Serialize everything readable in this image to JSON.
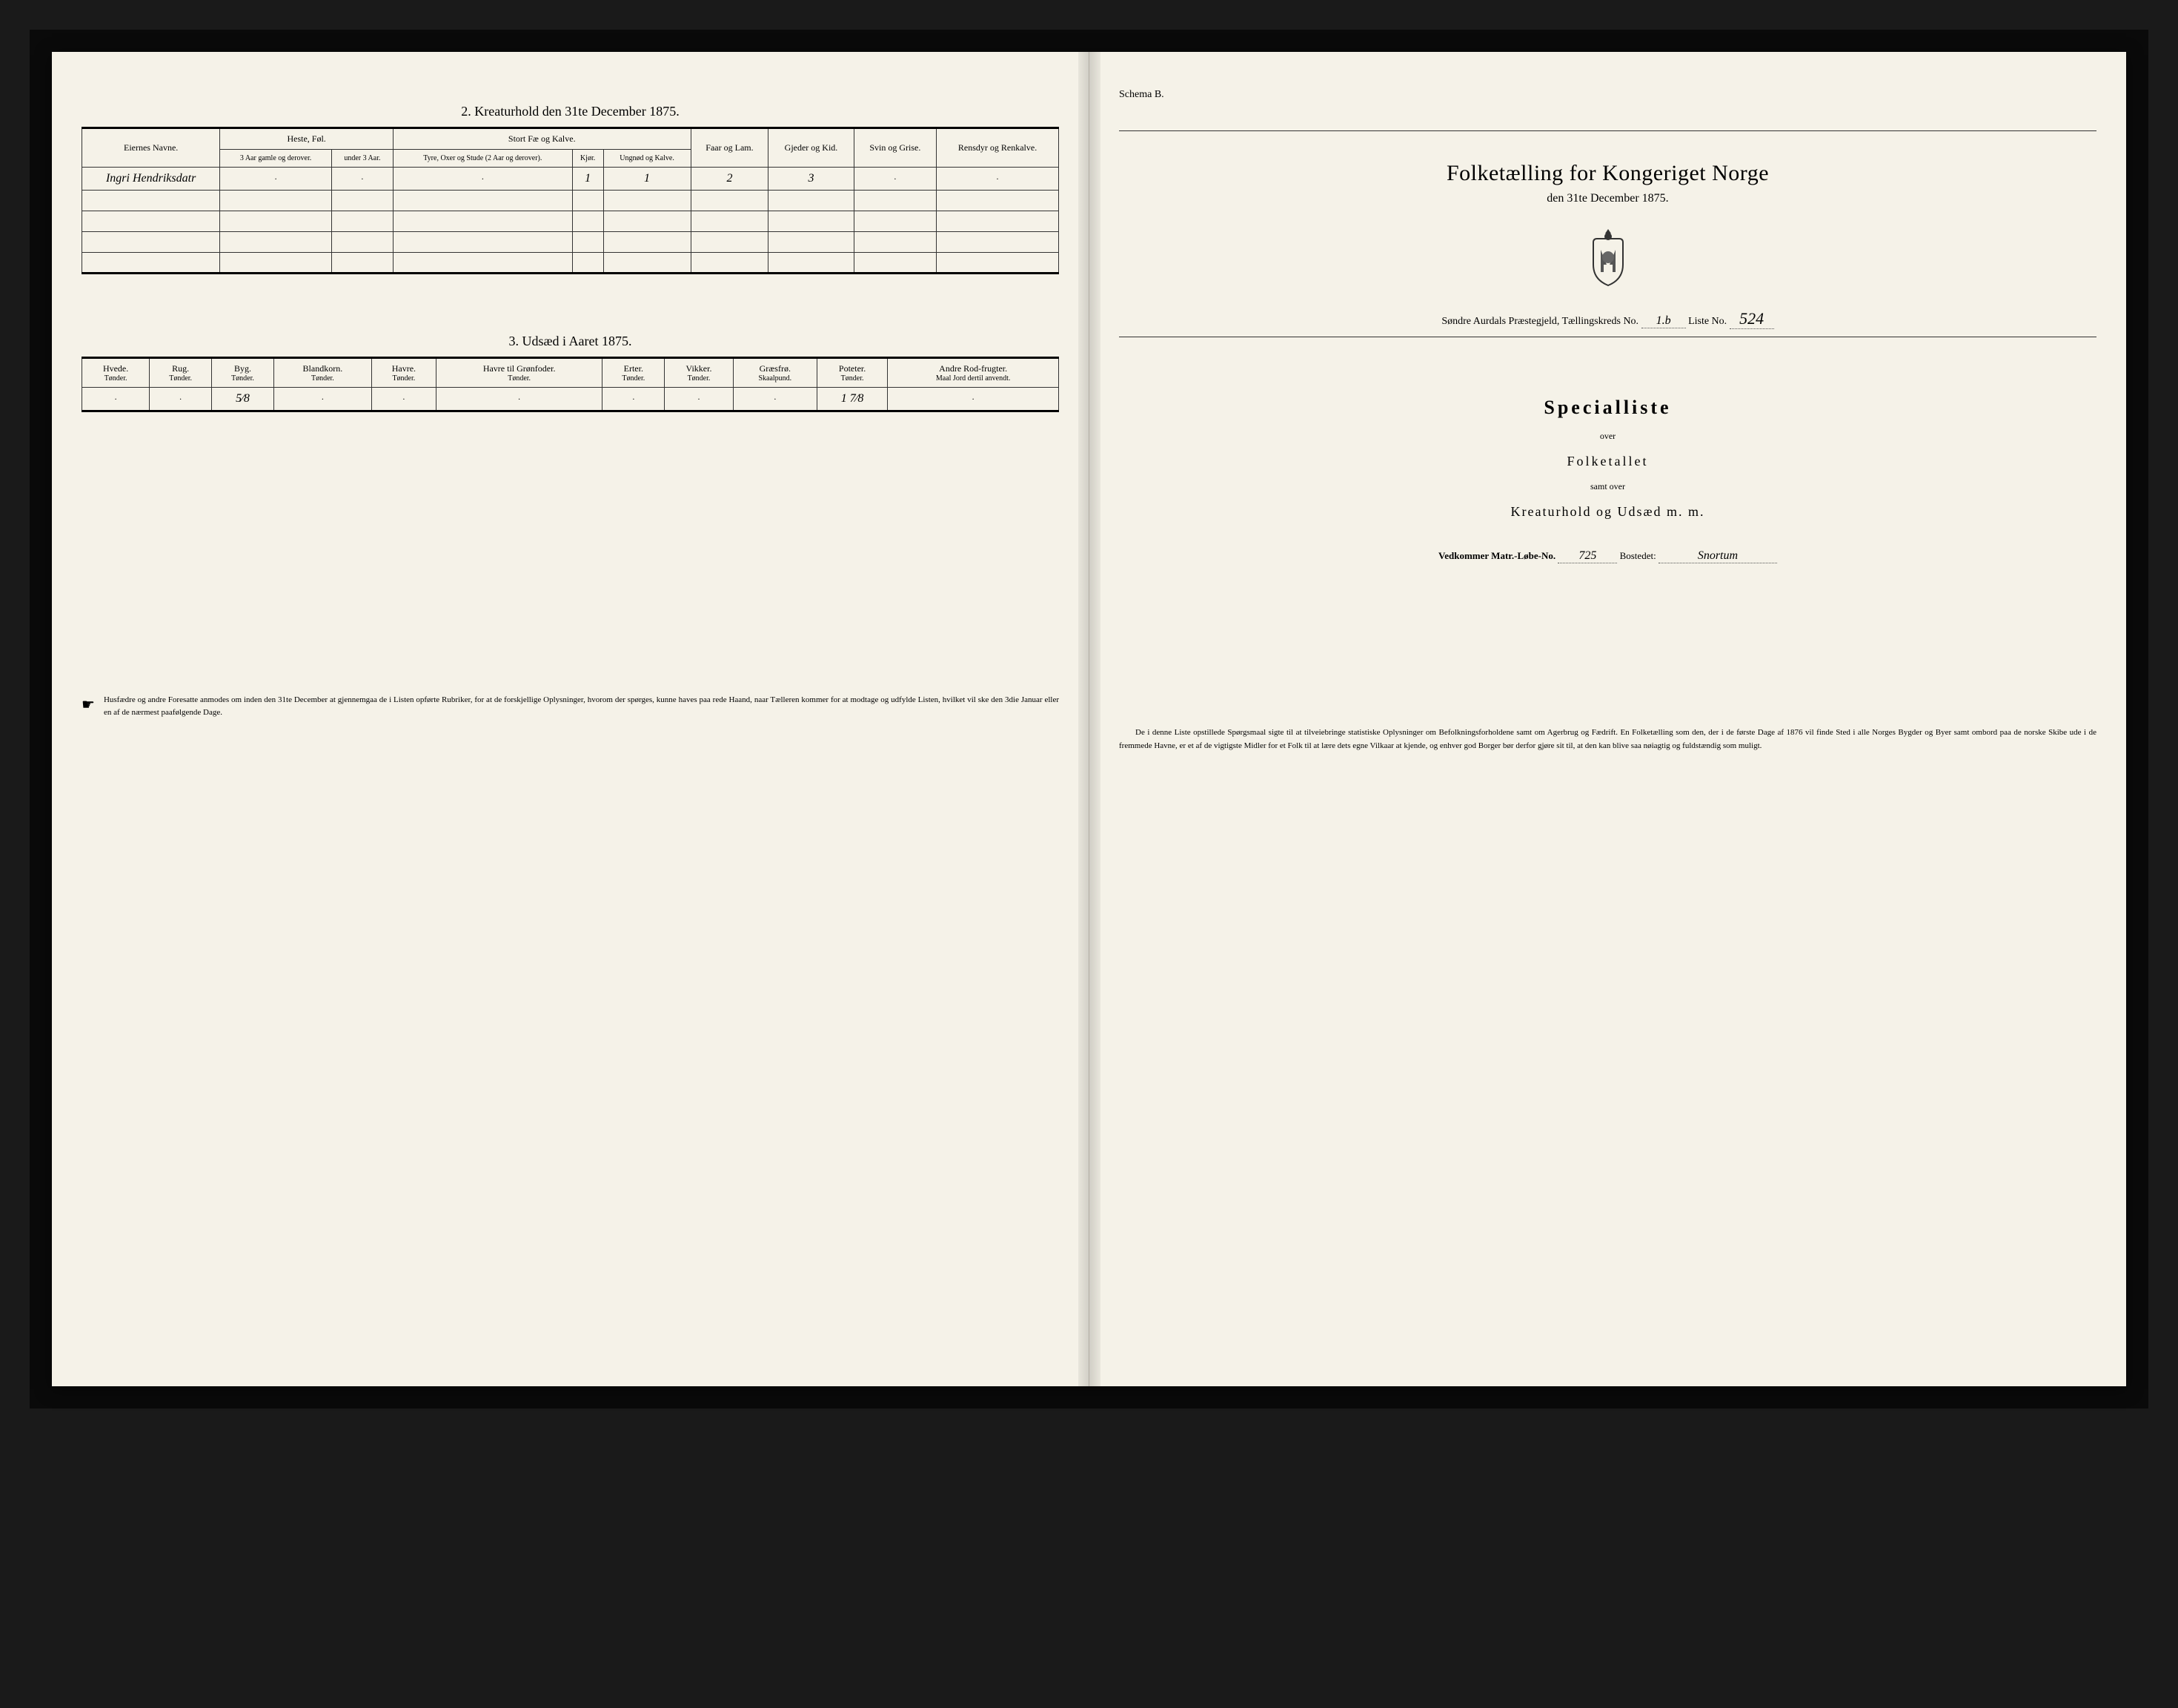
{
  "left": {
    "section2_title": "2. Kreaturhold den 31te December 1875.",
    "table2": {
      "col_owner": "Eiernes Navne.",
      "group_heste": "Heste, Føl.",
      "group_stort": "Stort Fæ og Kalve.",
      "col_heste1": "3 Aar gamle og derover.",
      "col_heste2": "under 3 Aar.",
      "col_stort1": "Tyre, Oxer og Stude (2 Aar og derover).",
      "col_stort2": "Kjør.",
      "col_stort3": "Ungnød og Kalve.",
      "col_faar": "Faar og Lam.",
      "col_gjeder": "Gjeder og Kid.",
      "col_svin": "Svin og Grise.",
      "col_rensdyr": "Rensdyr og Renkalve.",
      "row1": {
        "owner": "Ingri Hendriksdatr",
        "h1": "·",
        "h2": "·",
        "s1": "·",
        "s2": "1",
        "s3": "1",
        "faar": "2",
        "gjeder": "3",
        "svin": "·",
        "ren": "·"
      }
    },
    "section3_title": "3. Udsæd i Aaret 1875.",
    "table3": {
      "cols": [
        {
          "h": "Hvede.",
          "s": "Tønder."
        },
        {
          "h": "Rug.",
          "s": "Tønder."
        },
        {
          "h": "Byg.",
          "s": "Tønder."
        },
        {
          "h": "Blandkorn.",
          "s": "Tønder."
        },
        {
          "h": "Havre.",
          "s": "Tønder."
        },
        {
          "h": "Havre til Grønfoder.",
          "s": "Tønder."
        },
        {
          "h": "Erter.",
          "s": "Tønder."
        },
        {
          "h": "Vikker.",
          "s": "Tønder."
        },
        {
          "h": "Græsfrø.",
          "s": "Skaalpund."
        },
        {
          "h": "Poteter.",
          "s": "Tønder."
        },
        {
          "h": "Andre Rod-frugter.",
          "s": "Maal Jord dertil anvendt."
        }
      ],
      "row": [
        "·",
        "·",
        "5⁄8",
        "·",
        "·",
        "·",
        "·",
        "·",
        "·",
        "1 7⁄8",
        "·"
      ]
    },
    "note": "Husfædre og andre Foresatte anmodes om inden den 31te December at gjennemgaa de i Listen opførte Rubriker, for at de forskjellige Oplysninger, hvorom der spørges, kunne haves paa rede Haand, naar Tælleren kommer for at modtage og udfylde Listen, hvilket vil ske den 3die Januar eller en af de nærmest paafølgende Dage."
  },
  "right": {
    "schema": "Schema B.",
    "main_title": "Folketælling for Kongeriget Norge",
    "sub_title": "den 31te December 1875.",
    "district_prefix": "Søndre Aurdals Præstegjeld, Tællingskreds No.",
    "district_no": "1.b",
    "liste_label": "Liste No.",
    "liste_no": "524",
    "special": "Specialliste",
    "over": "over",
    "folketallet": "Folketallet",
    "samt": "samt over",
    "kreatur": "Kreaturhold og Udsæd m. m.",
    "vedkommer_label": "Vedkommer Matr.-Løbe-No.",
    "matr_no": "725",
    "bosted_label": "Bostedet:",
    "bosted": "Snortum",
    "para": "De i denne Liste opstillede Spørgsmaal sigte til at tilveiebringe statistiske Oplysninger om Befolkningsforholdene samt om Agerbrug og Fædrift. En Folketælling som den, der i de første Dage af 1876 vil finde Sted i alle Norges Bygder og Byer samt ombord paa de norske Skibe ude i de fremmede Havne, er et af de vigtigste Midler for et Folk til at lære dets egne Vilkaar at kjende, og enhver god Borger bør derfor gjøre sit til, at den kan blive saa nøiagtig og fuldstændig som muligt."
  },
  "colors": {
    "paper": "#f5f2e8",
    "ink": "#1a1a1a",
    "frame": "#0a0a0a"
  }
}
